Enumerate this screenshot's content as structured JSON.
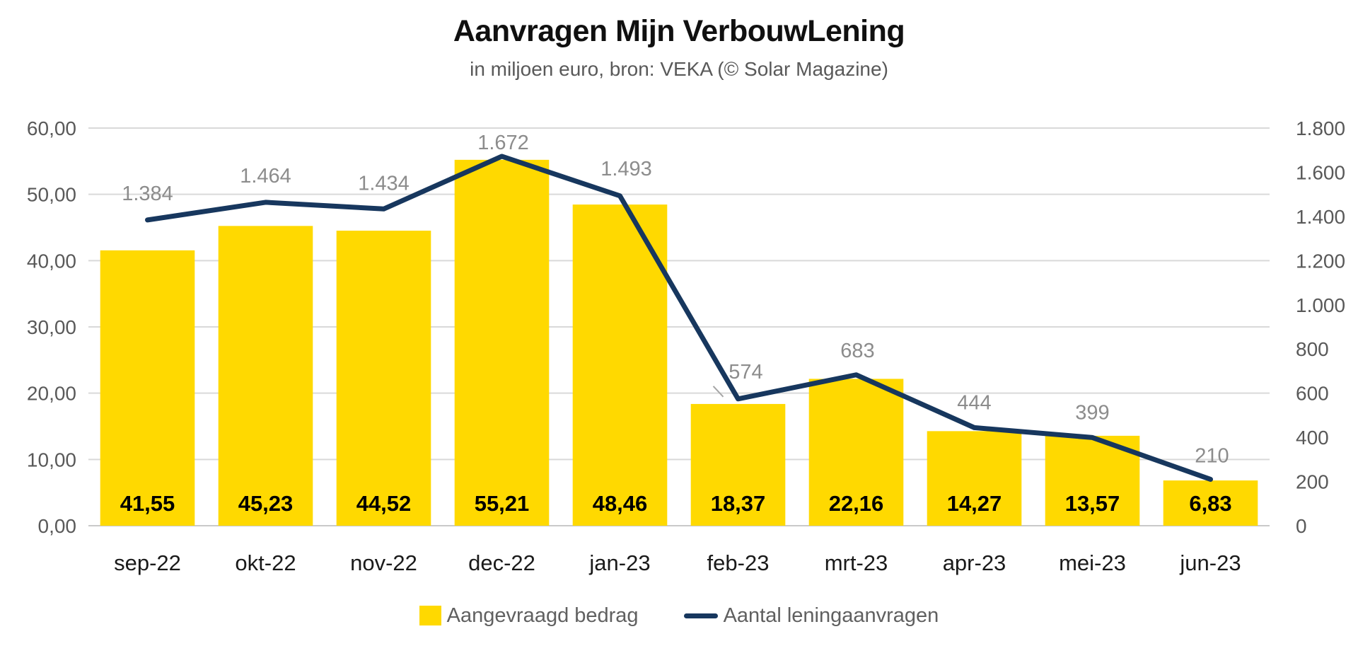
{
  "header": {
    "title": "Aanvragen Mijn VerbouwLening",
    "subtitle": "in miljoen euro, bron: VEKA (© Solar Magazine)"
  },
  "legend": {
    "items": [
      {
        "label": "Aangevraagd bedrag",
        "type": "bar",
        "color": "#FFD900"
      },
      {
        "label": "Aantal leningaanvragen",
        "type": "line",
        "color": "#17375E"
      }
    ],
    "position": "bottom"
  },
  "chart_data": {
    "type": "combo-bar-line",
    "title": "Aanvragen Mijn VerbouwLening",
    "subtitle": "in miljoen euro, bron: VEKA (© Solar Magazine)",
    "categories": [
      "sep-22",
      "okt-22",
      "nov-22",
      "dec-22",
      "jan-23",
      "feb-23",
      "mrt-23",
      "apr-23",
      "mei-23",
      "jun-23"
    ],
    "series": [
      {
        "name": "Aangevraagd bedrag",
        "type": "bar",
        "axis": "left",
        "color": "#FFD900",
        "values": [
          41.55,
          45.23,
          44.52,
          55.21,
          48.46,
          18.37,
          22.16,
          14.27,
          13.57,
          6.83
        ],
        "labels": [
          "41,55",
          "45,23",
          "44,52",
          "55,21",
          "48,46",
          "18,37",
          "22,16",
          "14,27",
          "13,57",
          "6,83"
        ]
      },
      {
        "name": "Aantal leningaanvragen",
        "type": "line",
        "axis": "right",
        "color": "#17375E",
        "values": [
          1384,
          1464,
          1434,
          1672,
          1493,
          574,
          683,
          444,
          399,
          210
        ],
        "labels": [
          "1.384",
          "1.464",
          "1.434",
          "1.672",
          "1.493",
          "574",
          "683",
          "444",
          "399",
          "210"
        ]
      }
    ],
    "left_axis": {
      "min": 0,
      "max": 60,
      "tick_labels": [
        "60,00",
        "50,00",
        "40,00",
        "30,00",
        "20,00",
        "10,00",
        "0,00"
      ]
    },
    "right_axis": {
      "min": 0,
      "max": 1800,
      "tick_labels": [
        "1.800",
        "1.600",
        "1.400",
        "1.200",
        "1.000",
        "800",
        "600",
        "400",
        "200",
        "0"
      ]
    },
    "grid": "horizontal",
    "legend_position": "bottom",
    "colors": {
      "bar": "#FFD900",
      "line": "#17375E",
      "gridline": "#D9D9D9",
      "axis_text": "#595959",
      "point_label_text": "#8C8C8C",
      "bar_label_text": "#000000",
      "category_text": "#1a1a1a"
    }
  }
}
